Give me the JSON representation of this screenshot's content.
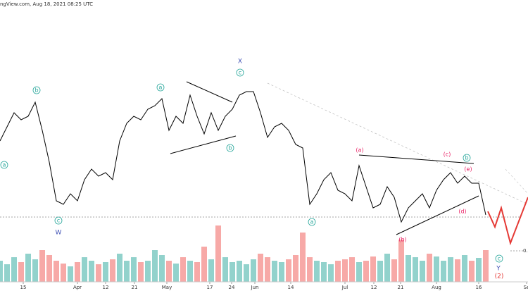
{
  "chart_data": {
    "type": "line",
    "header": "ngView.com, Aug 18, 2021 08:25 UTC",
    "x": [
      0,
      1,
      2,
      3,
      4,
      5,
      6,
      7,
      8,
      9,
      10,
      11,
      12,
      13,
      14,
      15,
      16,
      17,
      18,
      19,
      20,
      21,
      22,
      23,
      24,
      25,
      26,
      27,
      28,
      29,
      30,
      31,
      32,
      33,
      34,
      35,
      36,
      37,
      38,
      39,
      40,
      41,
      42,
      43,
      44,
      45,
      46,
      47,
      48,
      49,
      50,
      51,
      52,
      53,
      54,
      55,
      56,
      57,
      58,
      59,
      60,
      61,
      62,
      63,
      64,
      65,
      66,
      67,
      68,
      69
    ],
    "values": [
      200,
      220,
      240,
      230,
      235,
      255,
      215,
      170,
      115,
      110,
      125,
      115,
      145,
      160,
      150,
      155,
      145,
      200,
      225,
      235,
      230,
      245,
      250,
      260,
      215,
      235,
      225,
      265,
      235,
      210,
      240,
      215,
      235,
      245,
      265,
      270,
      270,
      240,
      205,
      220,
      225,
      215,
      195,
      190,
      110,
      125,
      145,
      155,
      130,
      125,
      115,
      165,
      135,
      105,
      110,
      135,
      120,
      85,
      105,
      115,
      125,
      105,
      130,
      145,
      155,
      140,
      150,
      140,
      140,
      95
    ],
    "volume": [
      30,
      25,
      35,
      28,
      40,
      32,
      45,
      38,
      30,
      26,
      22,
      28,
      35,
      30,
      25,
      28,
      32,
      40,
      30,
      35,
      28,
      30,
      45,
      38,
      30,
      26,
      35,
      30,
      28,
      50,
      32,
      80,
      35,
      28,
      30,
      25,
      32,
      40,
      35,
      30,
      28,
      32,
      38,
      70,
      35,
      30,
      28,
      25,
      30,
      32,
      35,
      28,
      30,
      36,
      30,
      40,
      32,
      60,
      38,
      35,
      30,
      40,
      36,
      30,
      35,
      32,
      38,
      30,
      34,
      45
    ],
    "color": "#000000",
    "volume_up_color": "#26a69a",
    "volume_down_color": "#ef5350",
    "xlim": [
      0,
      75
    ],
    "ylim": [
      0,
      390
    ],
    "xticks": [
      {
        "value": 3.3,
        "label": "15"
      },
      {
        "value": 11,
        "label": "Apr"
      },
      {
        "value": 15,
        "label": "12"
      },
      {
        "value": 19.1,
        "label": "21"
      },
      {
        "value": 23.7,
        "label": "May"
      },
      {
        "value": 29.8,
        "label": "17"
      },
      {
        "value": 32.9,
        "label": "24"
      },
      {
        "value": 36.2,
        "label": "Jun"
      },
      {
        "value": 41.3,
        "label": "14"
      },
      {
        "value": 49,
        "label": "Jul"
      },
      {
        "value": 53.1,
        "label": "12"
      },
      {
        "value": 56.9,
        "label": "21"
      },
      {
        "value": 62,
        "label": "Aug"
      },
      {
        "value": 68,
        "label": "16"
      },
      {
        "value": 74.8,
        "label": "Se"
      }
    ],
    "price_label": "0.",
    "annotations": [
      "a",
      "b",
      "c",
      "W",
      "a",
      "b",
      "c",
      "X",
      "a",
      "(a)",
      "(b)",
      "(c)",
      "b",
      "(e)",
      "(d)",
      "c",
      "Y",
      "(2)"
    ]
  }
}
